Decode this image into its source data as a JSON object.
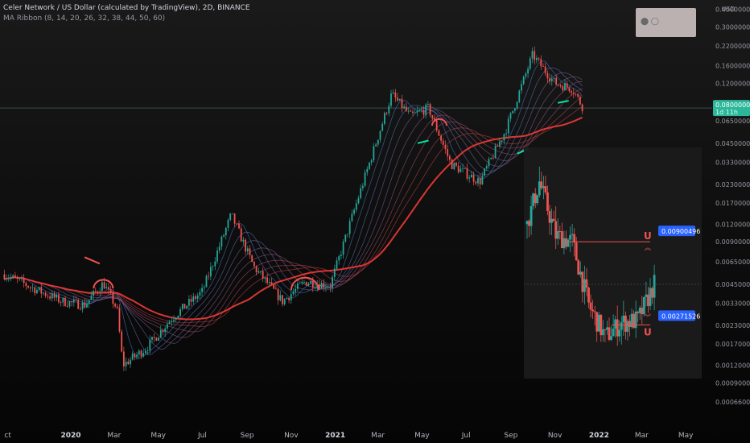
{
  "header": {
    "title": "Celer Network / US Dollar (calculated by TradingView), 2D, BINANCE",
    "indicator": "MA Ribbon (8, 14, 20, 26, 32, 38, 44, 50, 60)"
  },
  "colors": {
    "up": "#26a69a",
    "down": "#ef5350",
    "ribbon_slow": "#e53935",
    "ribbon_fast": "#00e5a0",
    "price_tag": "#2bb79a",
    "target_tag": "#2962ff"
  },
  "price_tag": {
    "value": "0.08000000",
    "sub": "1d 11h"
  },
  "annotations": {
    "upper_target": "0.00900496",
    "lower_target": "0.00271526"
  },
  "chart_data": {
    "type": "candlestick",
    "y_scale": "log",
    "ylabel": "USD",
    "ylim": [
      0.0005,
      0.42
    ],
    "y_ticks": [
      "0.40000000",
      "0.30000000",
      "0.22000000",
      "0.16000000",
      "0.12000000",
      "0.08500000",
      "0.06500000",
      "0.04500000",
      "0.03300000",
      "0.02300000",
      "0.01700000",
      "0.01200000",
      "0.00900000",
      "0.00650000",
      "0.00450000",
      "0.00330000",
      "0.00230000",
      "0.00170000",
      "0.00120000",
      "0.00090000",
      "0.00066000"
    ],
    "x_ticks": [
      {
        "label": "ct",
        "bold": false
      },
      {
        "label": "2020",
        "bold": true
      },
      {
        "label": "Mar",
        "bold": false
      },
      {
        "label": "May",
        "bold": false
      },
      {
        "label": "Jul",
        "bold": false
      },
      {
        "label": "Sep",
        "bold": false
      },
      {
        "label": "Nov",
        "bold": false
      },
      {
        "label": "2021",
        "bold": true
      },
      {
        "label": "Mar",
        "bold": false
      },
      {
        "label": "May",
        "bold": false
      },
      {
        "label": "Jul",
        "bold": false
      },
      {
        "label": "Sep",
        "bold": false
      },
      {
        "label": "Nov",
        "bold": false
      },
      {
        "label": "2022",
        "bold": true
      },
      {
        "label": "Mar",
        "bold": false
      },
      {
        "label": "May",
        "bold": false
      }
    ],
    "main_series_keypoints": [
      [
        "2019-10-01",
        0.0053
      ],
      [
        "2019-11-15",
        0.0041
      ],
      [
        "2019-12-20",
        0.0034
      ],
      [
        "2020-01-20",
        0.0032
      ],
      [
        "2020-02-15",
        0.0046
      ],
      [
        "2020-03-05",
        0.003
      ],
      [
        "2020-03-13",
        0.0012
      ],
      [
        "2020-04-15",
        0.0016
      ],
      [
        "2020-05-20",
        0.0026
      ],
      [
        "2020-07-01",
        0.004
      ],
      [
        "2020-08-10",
        0.014
      ],
      [
        "2020-09-10",
        0.006
      ],
      [
        "2020-10-20",
        0.0034
      ],
      [
        "2020-11-20",
        0.0047
      ],
      [
        "2020-12-25",
        0.0044
      ],
      [
        "2021-02-01",
        0.018
      ],
      [
        "2021-03-01",
        0.05
      ],
      [
        "2021-03-20",
        0.1
      ],
      [
        "2021-04-15",
        0.07
      ],
      [
        "2021-05-10",
        0.08
      ],
      [
        "2021-06-10",
        0.032
      ],
      [
        "2021-07-20",
        0.024
      ],
      [
        "2021-08-25",
        0.056
      ],
      [
        "2021-10-01",
        0.19
      ],
      [
        "2021-11-01",
        0.12
      ],
      [
        "2021-11-25",
        0.11
      ],
      [
        "2021-12-10",
        0.08
      ]
    ],
    "inset_series_keypoints": [
      [
        0,
        0.012
      ],
      [
        6,
        0.024
      ],
      [
        14,
        0.01
      ],
      [
        22,
        0.009
      ],
      [
        30,
        0.0032
      ],
      [
        38,
        0.0019
      ],
      [
        46,
        0.0024
      ],
      [
        54,
        0.0025
      ],
      [
        62,
        0.0045
      ]
    ]
  }
}
